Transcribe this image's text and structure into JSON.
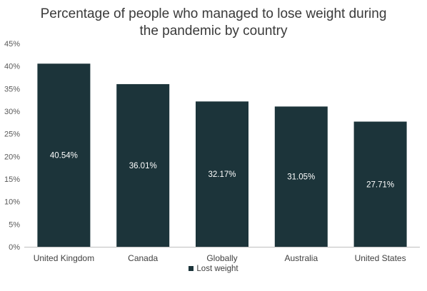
{
  "title_line1": "Percentage of people who managed to lose weight during",
  "title_line2": "the pandemic by country",
  "colors": {
    "bar": "#1c343a",
    "axis": "#bfbfbf"
  },
  "chart_data": {
    "type": "bar",
    "title": "Percentage of people who managed to lose weight during the pandemic by country",
    "categories": [
      "United Kingdom",
      "Canada",
      "Globally",
      "Australia",
      "United States"
    ],
    "series": [
      {
        "name": "Lost weight",
        "values": [
          40.54,
          36.01,
          32.17,
          31.05,
          27.71
        ],
        "labels": [
          "40.54%",
          "36.01%",
          "32.17%",
          "31.05%",
          "27.71%"
        ]
      }
    ],
    "ylim": [
      0,
      45
    ],
    "yticks": [
      0,
      5,
      10,
      15,
      20,
      25,
      30,
      35,
      40,
      45
    ],
    "ytick_labels": [
      "0%",
      "5%",
      "10%",
      "15%",
      "20%",
      "25%",
      "30%",
      "35%",
      "40%",
      "45%"
    ],
    "grid": false,
    "legend_position": "bottom"
  }
}
